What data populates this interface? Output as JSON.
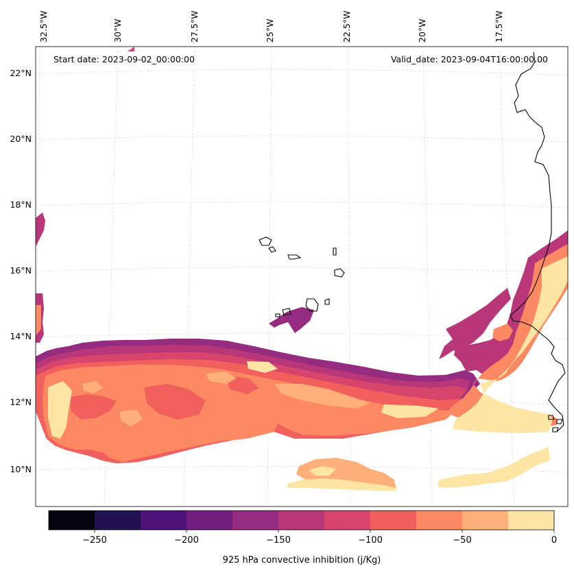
{
  "map": {
    "header": {
      "start_date": "Start date: 2023-09-02_00:00:00",
      "valid_date": "Valid_date: 2023-09-04T16:00:00.00"
    },
    "lon_labels": [
      "32.5°W",
      "30°W",
      "27.5°W",
      "25°W",
      "22.5°W",
      "20°W",
      "17.5°W"
    ],
    "lat_labels": [
      "22°N",
      "20°N",
      "18°N",
      "16°N",
      "14°N",
      "12°N",
      "10°N"
    ],
    "colorbar": {
      "label": "925 hPa convective inhibition (j/Kg)",
      "tick_labels": [
        "−250",
        "−200",
        "−150",
        "−100",
        "−50",
        "0"
      ],
      "levels": [
        -275,
        -250,
        -225,
        -200,
        -175,
        -150,
        -125,
        -100,
        -75,
        -50,
        -25,
        0
      ],
      "colors": [
        "#05030f",
        "#221150",
        "#4f127b",
        "#721f81",
        "#952c80",
        "#b73779",
        "#d8456c",
        "#f1605d",
        "#fc8961",
        "#feb078",
        "#fde6a5"
      ]
    }
  },
  "colors": {
    "c250": "#221150",
    "c200": "#721f81",
    "c175": "#952c80",
    "c150": "#b73779",
    "c125": "#d8456c",
    "c100": "#f1605d",
    "c75": "#fc8961",
    "c50": "#feb078",
    "c25": "#fde6a5"
  }
}
